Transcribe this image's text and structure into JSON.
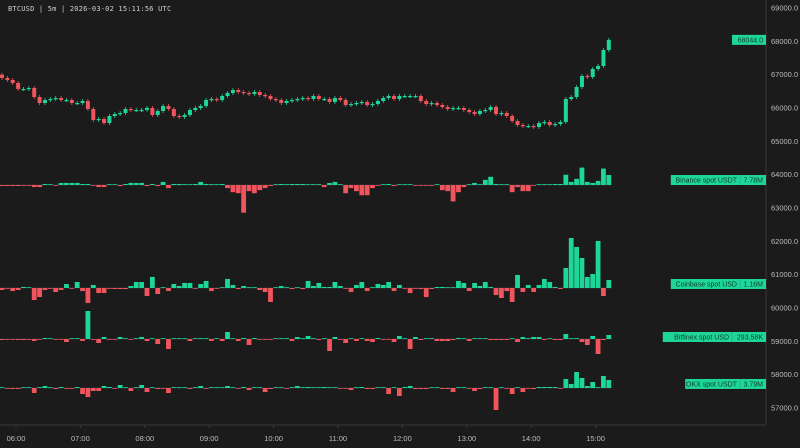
{
  "header": {
    "symbol": "BTCUSD",
    "interval": "5m",
    "timestamp": "2026-03-02 15:11:56 UTC",
    "separator": " | "
  },
  "colors": {
    "up": "#1fd69a",
    "down": "#f0545c",
    "background": "#1b1b1b",
    "axis": "#3a3a3a",
    "text": "#bdbdbd",
    "label_bg": "#1fd69a"
  },
  "chart_data": [
    {
      "type": "candlestick",
      "interval_minutes": 5,
      "first_candle_time": "05:45",
      "first_open": 67000,
      "close": [
        66900,
        66840,
        66750,
        66570,
        66570,
        66600,
        66330,
        66150,
        66240,
        66270,
        66300,
        66240,
        66240,
        66150,
        66150,
        66210,
        65970,
        65640,
        65670,
        65550,
        65760,
        65820,
        65850,
        65970,
        65940,
        65940,
        65940,
        66000,
        65790,
        65910,
        66060,
        65970,
        65760,
        65730,
        65790,
        65940,
        66000,
        66060,
        66240,
        66270,
        66240,
        66360,
        66450,
        66540,
        66480,
        66450,
        66420,
        66480,
        66390,
        66360,
        66270,
        66240,
        66150,
        66210,
        66240,
        66270,
        66300,
        66270,
        66360,
        66270,
        66270,
        66180,
        66300,
        66240,
        66090,
        66120,
        66150,
        66180,
        66090,
        66120,
        66210,
        66300,
        66360,
        66270,
        66360,
        66360,
        66360,
        66360,
        66210,
        66120,
        66150,
        66090,
        66030,
        65970,
        66000,
        66000,
        65940,
        65880,
        65820,
        65910,
        65940,
        66030,
        65820,
        65850,
        65760,
        65610,
        65490,
        65460,
        65460,
        65430,
        65550,
        65580,
        65490,
        65520,
        65580,
        66270,
        66330,
        66630,
        66960,
        66930,
        67170,
        67260,
        67740,
        68044
      ],
      "last_price_label": "68044.0",
      "y_ticks": [
        "69000.0",
        "68000.0",
        "67000.0",
        "66000.0",
        "65000.0",
        "64000.0",
        "63000.0",
        "62000.0",
        "61000.0",
        "60000.0",
        "59000.0",
        "58000.0",
        "57000.0"
      ],
      "y_tick_values": [
        69000,
        68000,
        67000,
        66000,
        65000,
        64000,
        63000,
        62000,
        61000,
        60000,
        59000,
        58000,
        57000
      ],
      "x_ticks": [
        "06:00",
        "07:00",
        "08:00",
        "09:00",
        "10:00",
        "11:00",
        "12:00",
        "13:00",
        "14:00",
        "15:00"
      ]
    },
    {
      "type": "bar",
      "name": "Binance spot USDT",
      "unit": "M",
      "last_value_label": "7.78M",
      "values": [
        -0.8,
        -0.8,
        -0.8,
        -0.8,
        -0.4,
        -0.4,
        -1.6,
        -1.6,
        0.8,
        0.4,
        -0.4,
        1.6,
        1.6,
        1.6,
        1.6,
        0.8,
        0.8,
        -0.4,
        -1.6,
        -1.6,
        0.4,
        0.4,
        -0.8,
        0.8,
        1.6,
        1.6,
        1.6,
        -0.8,
        0.8,
        -0.8,
        2.4,
        -2.4,
        0.8,
        0.8,
        0.4,
        0.4,
        0.8,
        2.4,
        0.8,
        0.4,
        0.4,
        0.8,
        -2.4,
        -5.6,
        -6.4,
        -21.6,
        -4.8,
        -6.4,
        -4.0,
        -2.4,
        -0.8,
        0.4,
        0.8,
        0.4,
        0.8,
        0.8,
        0.8,
        0.4,
        0.4,
        0.4,
        -1.6,
        1.6,
        2.4,
        0.4,
        -6.4,
        -2.4,
        -4.8,
        -8.0,
        -8.0,
        -2.4,
        -0.4,
        0.4,
        0.8,
        -0.8,
        0.4,
        0.4,
        0.4,
        -0.4,
        -0.4,
        -0.4,
        -0.4,
        0.4,
        -4.0,
        -4.8,
        -12.8,
        -5.6,
        -1.6,
        0.4,
        1.6,
        0.4,
        4.0,
        6.4,
        0.8,
        0.4,
        0.4,
        -5.6,
        -1.6,
        -4.8,
        -4.8,
        -0.4,
        0.4,
        0.4,
        0.4,
        0.8,
        0.8,
        8.0,
        2.4,
        4.8,
        13.6,
        2.4,
        1.6,
        3.2,
        12.8,
        7.78
      ]
    },
    {
      "type": "bar",
      "name": "Coinbase spot USD",
      "unit": "M",
      "last_value_label": "1.16M",
      "values": [
        -0.29,
        -0.07,
        -0.44,
        -0.29,
        0.15,
        0.07,
        -1.74,
        -1.31,
        -0.29,
        -0.07,
        -0.58,
        -0.29,
        0.58,
        -0.07,
        0.87,
        -0.44,
        -2.18,
        0.44,
        -0.73,
        -0.73,
        -0.07,
        -0.15,
        -0.15,
        -0.15,
        0.29,
        0.87,
        0.87,
        -1.16,
        1.6,
        -0.87,
        0.07,
        -0.44,
        0.58,
        0.29,
        0.73,
        0.73,
        -0.07,
        0.58,
        1.02,
        -0.44,
        -0.07,
        0.07,
        1.31,
        0.44,
        -0.15,
        0.29,
        0.07,
        0.07,
        -0.29,
        -0.58,
        -2.03,
        0.07,
        0.29,
        0.07,
        -0.15,
        0.07,
        -0.15,
        1.02,
        0.29,
        0.73,
        0.15,
        0.15,
        0.87,
        0.29,
        -0.07,
        -0.58,
        0.44,
        0.87,
        -0.44,
        0.07,
        0.58,
        0.44,
        0.87,
        -0.44,
        0.44,
        -0.07,
        -0.73,
        -0.07,
        -0.15,
        -1.31,
        -0.15,
        0.15,
        0.15,
        0.07,
        0.07,
        1.02,
        0.73,
        -0.44,
        0.73,
        0.29,
        0.87,
        0.15,
        -1.02,
        -1.45,
        -0.44,
        -2.03,
        1.89,
        -0.58,
        0.44,
        -0.58,
        0.44,
        1.31,
        0.87,
        0.15,
        -0.15,
        2.9,
        7.25,
        5.95,
        4.35,
        1.6,
        2.03,
        6.82,
        -1.16,
        1.16
      ]
    },
    {
      "type": "bar",
      "name": "Bitfinex spot USD",
      "unit": "K",
      "last_value_label": "293.58K",
      "values": [
        -73,
        -37,
        -37,
        -73,
        -73,
        -37,
        -146,
        -37,
        73,
        37,
        -37,
        -37,
        -219,
        37,
        37,
        -146,
        2044,
        -37,
        -292,
        146,
        -37,
        -37,
        146,
        37,
        -37,
        37,
        146,
        -146,
        37,
        -365,
        37,
        -730,
        37,
        37,
        37,
        -146,
        37,
        37,
        37,
        -146,
        37,
        -146,
        511,
        37,
        -146,
        73,
        -438,
        73,
        -37,
        -37,
        -37,
        37,
        37,
        37,
        -146,
        146,
        37,
        219,
        37,
        -73,
        37,
        -876,
        146,
        -37,
        -292,
        37,
        -146,
        37,
        -146,
        -219,
        73,
        -37,
        -37,
        -219,
        219,
        37,
        -730,
        146,
        -73,
        37,
        37,
        -146,
        -146,
        -146,
        -73,
        73,
        37,
        -146,
        37,
        37,
        37,
        -73,
        -73,
        -73,
        -73,
        37,
        -219,
        146,
        37,
        146,
        146,
        -73,
        37,
        -73,
        -73,
        365,
        37,
        37,
        -219,
        -438,
        219,
        -1095,
        -73,
        293.58
      ]
    },
    {
      "type": "bar",
      "name": "OKX spot USDT",
      "unit": "M",
      "last_value_label": "3.79M",
      "values": [
        0.24,
        -0.24,
        -0.47,
        -0.47,
        0.24,
        0.24,
        -2.35,
        0.24,
        0.94,
        0.24,
        -0.47,
        0.47,
        -0.24,
        -0.24,
        0.47,
        -2.82,
        -4.23,
        -1.41,
        -1.41,
        0.94,
        0.47,
        -0.24,
        1.41,
        0.24,
        -1.41,
        0.24,
        1.41,
        -1.88,
        0.24,
        -0.47,
        -0.24,
        -2.35,
        0.24,
        0.24,
        0.24,
        -0.47,
        0.24,
        0.94,
        -0.24,
        0.24,
        0.24,
        0.24,
        0.94,
        0.24,
        -0.24,
        0.47,
        -0.94,
        0.24,
        0.24,
        -1.88,
        -0.47,
        0.24,
        0.24,
        -0.24,
        0.24,
        0.94,
        0.24,
        0.47,
        0.24,
        0.24,
        0.47,
        0.24,
        0.24,
        -0.24,
        -0.24,
        -0.94,
        0.24,
        0.47,
        -0.47,
        -0.47,
        0.24,
        0.24,
        -2.82,
        0.24,
        -3.76,
        0.47,
        0.94,
        -0.47,
        -0.47,
        -0.47,
        0.24,
        0.24,
        -0.47,
        -0.47,
        -1.88,
        0.24,
        0.24,
        -0.24,
        -1.41,
        -0.47,
        0.24,
        0.24,
        -10.34,
        0.24,
        -0.24,
        -2.82,
        0.24,
        -1.88,
        -0.24,
        -0.47,
        0.47,
        0.47,
        0.47,
        0.47,
        -0.24,
        4.23,
        1.88,
        7.52,
        4.7,
        0.94,
        2.82,
        0.24,
        5.64,
        3.79
      ]
    }
  ]
}
